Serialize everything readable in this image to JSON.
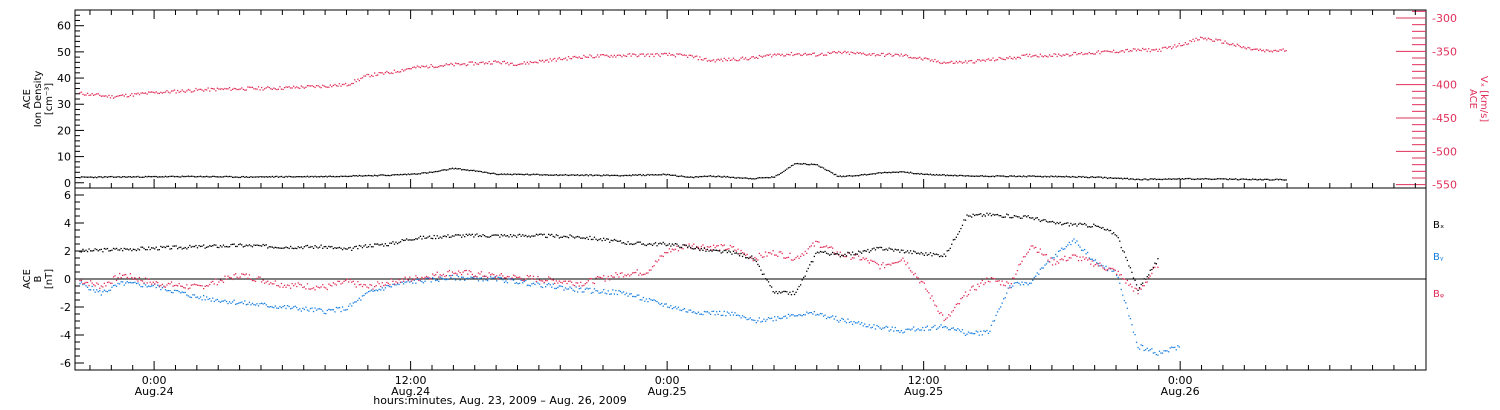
{
  "footer_label": "hours:minutes, Aug. 23, 2009 – Aug. 26, 2009",
  "colors": {
    "black": "#000000",
    "pink": "#e0305a",
    "blue": "#1a7fe0"
  },
  "chart_data": [
    {
      "type": "scatter",
      "panel": "top",
      "ylabel_left": [
        "ACE",
        "Ion Density",
        "[cm⁻³]"
      ],
      "ylabel_right": [
        "ACE",
        "Vₓ [km/s]"
      ],
      "ylim_left": [
        -2,
        66
      ],
      "ylim_right": [
        -555,
        -288
      ],
      "left_ticks": [
        "0",
        "10",
        "20",
        "30",
        "40",
        "50",
        "60"
      ],
      "right_ticks": [
        "-300",
        "-350",
        "-400",
        "-450",
        "-500",
        "-550"
      ],
      "x_unit": "hours since 2009-08-23 00:00",
      "series": [
        {
          "name": "",
          "axis": "left",
          "color": "#000000",
          "points": [
            [
              20.5,
              2.1
            ],
            [
              22,
              2.2
            ],
            [
              24,
              2.3
            ],
            [
              26,
              2.4
            ],
            [
              28,
              2.2
            ],
            [
              30,
              2.3
            ],
            [
              32,
              2.4
            ],
            [
              33,
              2.6
            ],
            [
              35,
              2.9
            ],
            [
              36,
              3.3
            ],
            [
              37,
              4.0
            ],
            [
              38,
              5.5
            ],
            [
              39,
              4.5
            ],
            [
              40,
              3.3
            ],
            [
              42,
              3.1
            ],
            [
              44,
              2.9
            ],
            [
              46,
              2.8
            ],
            [
              48,
              3.2
            ],
            [
              49,
              2.0
            ],
            [
              50,
              2.6
            ],
            [
              51,
              2.1
            ],
            [
              52,
              1.6
            ],
            [
              53,
              2.2
            ],
            [
              54,
              7.5
            ],
            [
              55,
              6.8
            ],
            [
              56,
              2.4
            ],
            [
              57,
              2.9
            ],
            [
              58,
              3.8
            ],
            [
              59,
              4.2
            ],
            [
              60,
              3.2
            ],
            [
              62,
              2.6
            ],
            [
              64,
              2.5
            ],
            [
              66,
              2.4
            ],
            [
              68,
              2.1
            ],
            [
              70,
              1.3
            ],
            [
              72,
              1.5
            ],
            [
              74,
              1.4
            ],
            [
              76,
              1.2
            ],
            [
              77,
              1.2
            ]
          ]
        },
        {
          "name": "",
          "axis": "right",
          "color": "#e0305a",
          "points": [
            [
              20.5,
              -413
            ],
            [
              22,
              -418
            ],
            [
              24,
              -412
            ],
            [
              26,
              -408
            ],
            [
              28,
              -406
            ],
            [
              30,
              -405
            ],
            [
              32,
              -402
            ],
            [
              33,
              -400
            ],
            [
              34,
              -386
            ],
            [
              35,
              -382
            ],
            [
              36,
              -375
            ],
            [
              37,
              -372
            ],
            [
              39,
              -368
            ],
            [
              40,
              -366
            ],
            [
              41,
              -369
            ],
            [
              42,
              -365
            ],
            [
              44,
              -358
            ],
            [
              46,
              -356
            ],
            [
              48,
              -355
            ],
            [
              49,
              -357
            ],
            [
              50,
              -364
            ],
            [
              52,
              -360
            ],
            [
              53,
              -355
            ],
            [
              54,
              -354
            ],
            [
              55,
              -355
            ],
            [
              56,
              -352
            ],
            [
              58,
              -355
            ],
            [
              59,
              -356
            ],
            [
              60,
              -362
            ],
            [
              61,
              -367
            ],
            [
              62,
              -366
            ],
            [
              64,
              -360
            ],
            [
              65,
              -356
            ],
            [
              66,
              -356
            ],
            [
              68,
              -352
            ],
            [
              69,
              -350
            ],
            [
              70,
              -348
            ],
            [
              71,
              -348
            ],
            [
              72,
              -340
            ],
            [
              73,
              -330
            ],
            [
              74,
              -336
            ],
            [
              75,
              -345
            ],
            [
              76,
              -350
            ],
            [
              77,
              -348
            ]
          ]
        }
      ]
    },
    {
      "type": "scatter",
      "panel": "bottom",
      "ylabel": [
        "ACE",
        "B",
        "[nT]"
      ],
      "ylim": [
        -6.5,
        6.5
      ],
      "y_ticks": [
        "6",
        "4",
        "2",
        "0",
        "-2",
        "-4",
        "-6"
      ],
      "zero_line": true,
      "x_ticks": [
        {
          "x": 24,
          "time": "0:00",
          "date": "Aug.24"
        },
        {
          "x": 36,
          "time": "12:00",
          "date": "Aug.24"
        },
        {
          "x": 48,
          "time": "0:00",
          "date": "Aug.25"
        },
        {
          "x": 60,
          "time": "12:00",
          "date": "Aug.25"
        },
        {
          "x": 72,
          "time": "0:00",
          "date": "Aug.26"
        }
      ],
      "xlim": [
        20.3,
        83.5
      ],
      "legend": [
        {
          "label": "Bₓ",
          "color": "#000000"
        },
        {
          "label": "Bᵧ",
          "color": "#1a7fe0"
        },
        {
          "label": "Bᵩ",
          "color": "#e0305a"
        }
      ],
      "series": [
        {
          "name": "Bₓ",
          "color": "#000000",
          "points": [
            [
              20.5,
              2.0
            ],
            [
              22,
              2.1
            ],
            [
              24,
              2.2
            ],
            [
              26,
              2.3
            ],
            [
              28,
              2.4
            ],
            [
              30,
              2.3
            ],
            [
              32,
              2.3
            ],
            [
              33,
              2.1
            ],
            [
              34,
              2.4
            ],
            [
              35,
              2.5
            ],
            [
              36,
              2.9
            ],
            [
              38,
              3.1
            ],
            [
              40,
              3.1
            ],
            [
              42,
              3.1
            ],
            [
              44,
              3.0
            ],
            [
              46,
              2.6
            ],
            [
              47,
              2.5
            ],
            [
              48,
              2.5
            ],
            [
              49,
              2.3
            ],
            [
              50,
              2.0
            ],
            [
              51,
              1.9
            ],
            [
              52,
              1.5
            ],
            [
              53,
              -1.0
            ],
            [
              54,
              -1.0
            ],
            [
              55,
              2.0
            ],
            [
              56,
              1.7
            ],
            [
              57,
              1.9
            ],
            [
              58,
              2.2
            ],
            [
              59,
              2.0
            ],
            [
              60,
              1.8
            ],
            [
              61,
              1.7
            ],
            [
              62,
              4.5
            ],
            [
              63,
              4.6
            ],
            [
              64,
              4.5
            ],
            [
              65,
              4.4
            ],
            [
              66,
              4.0
            ],
            [
              67,
              3.9
            ],
            [
              68,
              3.8
            ],
            [
              69,
              3.2
            ],
            [
              70,
              -0.7
            ],
            [
              71,
              1.5
            ]
          ]
        },
        {
          "name": "Bᵧ",
          "color": "#1a7fe0",
          "points": [
            [
              20.5,
              -0.3
            ],
            [
              21.5,
              -1.0
            ],
            [
              22.5,
              -0.3
            ],
            [
              24,
              -0.5
            ],
            [
              26,
              -1.3
            ],
            [
              28,
              -1.7
            ],
            [
              30,
              -2.0
            ],
            [
              32,
              -2.3
            ],
            [
              33,
              -2.1
            ],
            [
              34,
              -1.0
            ],
            [
              35,
              -0.5
            ],
            [
              36,
              -0.2
            ],
            [
              38,
              0.1
            ],
            [
              40,
              0.0
            ],
            [
              42,
              -0.4
            ],
            [
              44,
              -0.8
            ],
            [
              46,
              -1.0
            ],
            [
              47,
              -1.5
            ],
            [
              48,
              -1.9
            ],
            [
              49,
              -2.3
            ],
            [
              50,
              -2.4
            ],
            [
              51,
              -2.5
            ],
            [
              52,
              -3.0
            ],
            [
              53,
              -2.8
            ],
            [
              54,
              -2.5
            ],
            [
              55,
              -2.5
            ],
            [
              56,
              -2.9
            ],
            [
              57,
              -3.2
            ],
            [
              58,
              -3.5
            ],
            [
              59,
              -3.7
            ],
            [
              60,
              -3.5
            ],
            [
              61,
              -3.4
            ],
            [
              62,
              -3.9
            ],
            [
              63,
              -3.8
            ],
            [
              64,
              -0.5
            ],
            [
              65,
              -0.2
            ],
            [
              66,
              1.5
            ],
            [
              67,
              2.8
            ],
            [
              68,
              1.2
            ],
            [
              69,
              0.4
            ],
            [
              70,
              -4.8
            ],
            [
              71,
              -5.3
            ],
            [
              72,
              -4.8
            ]
          ]
        },
        {
          "name": "Bᵩ",
          "color": "#e0305a",
          "points": [
            [
              20.5,
              -0.1
            ],
            [
              21.5,
              -0.5
            ],
            [
              22.5,
              0.3
            ],
            [
              24,
              -0.3
            ],
            [
              26,
              -0.6
            ],
            [
              28,
              0.3
            ],
            [
              30,
              -0.4
            ],
            [
              32,
              -0.6
            ],
            [
              33,
              -0.2
            ],
            [
              34,
              -0.6
            ],
            [
              35,
              -0.2
            ],
            [
              36,
              0.0
            ],
            [
              38,
              0.5
            ],
            [
              40,
              0.2
            ],
            [
              42,
              0.0
            ],
            [
              44,
              -0.3
            ],
            [
              46,
              0.4
            ],
            [
              47,
              0.5
            ],
            [
              48,
              2.0
            ],
            [
              49,
              2.4
            ],
            [
              50,
              2.3
            ],
            [
              51,
              2.2
            ],
            [
              52,
              1.5
            ],
            [
              53,
              1.9
            ],
            [
              54,
              1.5
            ],
            [
              55,
              2.6
            ],
            [
              56,
              1.8
            ],
            [
              57,
              1.5
            ],
            [
              58,
              0.9
            ],
            [
              59,
              1.5
            ],
            [
              60,
              -0.5
            ],
            [
              61,
              -3.0
            ],
            [
              62,
              -1.0
            ],
            [
              63,
              0.0
            ],
            [
              64,
              -0.4
            ],
            [
              65,
              2.5
            ],
            [
              66,
              1.2
            ],
            [
              67,
              1.6
            ],
            [
              68,
              1.1
            ],
            [
              69,
              0.5
            ],
            [
              70,
              -1.0
            ],
            [
              71,
              1.2
            ]
          ]
        }
      ]
    }
  ]
}
